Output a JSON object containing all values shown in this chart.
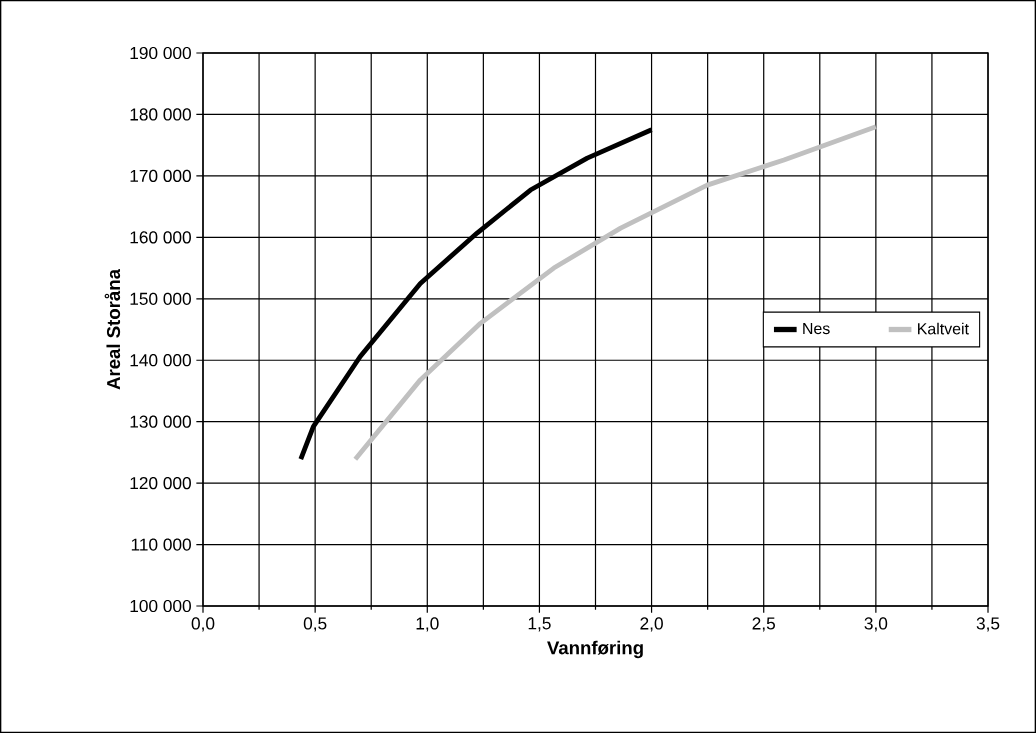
{
  "chart_data": {
    "type": "line",
    "xlabel": "Vannføring",
    "ylabel": "Areal Storåna",
    "series": [
      {
        "name": "Nes",
        "color": "#000000",
        "x": [
          0.436,
          0.492,
          0.701,
          0.969,
          1.222,
          1.46,
          1.713,
          2.0
        ],
        "values": [
          123900,
          129200,
          140600,
          152500,
          160700,
          167700,
          172900,
          177500
        ]
      },
      {
        "name": "Kaltveit",
        "color": "#c0c0c0",
        "x": [
          0.679,
          0.969,
          1.237,
          1.564,
          1.862,
          2.248,
          2.59,
          3.0
        ],
        "values": [
          123900,
          136800,
          146000,
          155000,
          161500,
          168500,
          172600,
          178000
        ]
      }
    ],
    "xlim": [
      0,
      3.5
    ],
    "ylim": [
      100000,
      190000
    ],
    "xticks": [
      {
        "value": 0,
        "label": "0,0"
      },
      {
        "value": 0.5,
        "label": "0,5"
      },
      {
        "value": 1,
        "label": "1,0"
      },
      {
        "value": 1.5,
        "label": "1,5"
      },
      {
        "value": 2,
        "label": "2,0"
      },
      {
        "value": 2.5,
        "label": "2,5"
      },
      {
        "value": 3,
        "label": "3,0"
      },
      {
        "value": 3.5,
        "label": "3,5"
      }
    ],
    "yticks": [
      {
        "value": 100000,
        "label": "100 000"
      },
      {
        "value": 110000,
        "label": "110 000"
      },
      {
        "value": 120000,
        "label": "120 000"
      },
      {
        "value": 130000,
        "label": "130 000"
      },
      {
        "value": 140000,
        "label": "140 000"
      },
      {
        "value": 150000,
        "label": "150 000"
      },
      {
        "value": 160000,
        "label": "160 000"
      },
      {
        "value": 170000,
        "label": "170 000"
      },
      {
        "value": 180000,
        "label": "180 000"
      },
      {
        "value": 190000,
        "label": "190 000"
      }
    ],
    "grid": true,
    "legend": "right",
    "marker": "none",
    "line_style": "solid"
  }
}
